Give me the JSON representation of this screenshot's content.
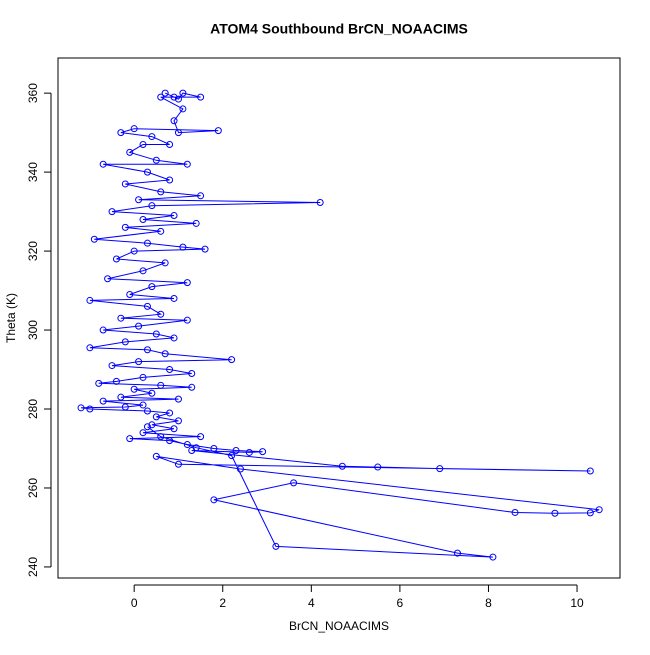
{
  "chart_data": {
    "type": "line",
    "title": "ATOM4 Southbound BrCN_NOAACIMS",
    "x_label": "BrCN_NOAACIMS",
    "y_label": "Theta (K)",
    "color": "#0000ff",
    "markers": true,
    "xlim": [
      -1.72,
      10.97
    ],
    "ylim": [
      237.2,
      368.9
    ],
    "xticks": [
      0,
      2,
      4,
      6,
      8,
      10
    ],
    "yticks": [
      240,
      260,
      280,
      300,
      320,
      340,
      360
    ],
    "series": [
      {
        "name": "BrCN_NOAACIMS",
        "color": "#0000ff",
        "x": [
          0.7,
          0.9,
          1.0,
          1.1,
          1.5,
          0.6,
          1.1,
          0.9,
          1.0,
          1.9,
          0.0,
          -0.3,
          0.4,
          0.8,
          0.2,
          -0.1,
          0.5,
          1.2,
          -0.7,
          0.3,
          0.8,
          -0.2,
          0.6,
          1.5,
          0.1,
          4.2,
          0.4,
          -0.5,
          0.9,
          0.2,
          1.4,
          -0.2,
          0.6,
          -0.9,
          0.3,
          1.1,
          1.6,
          0.0,
          -0.4,
          0.7,
          0.2,
          -0.6,
          1.2,
          0.4,
          -0.1,
          0.9,
          -1.0,
          0.3,
          0.6,
          -0.3,
          1.2,
          0.1,
          -0.7,
          0.5,
          0.9,
          -0.2,
          -1.0,
          0.3,
          0.7,
          2.2,
          0.1,
          -0.5,
          0.8,
          1.3,
          0.2,
          -0.4,
          -0.8,
          0.6,
          1.3,
          0.0,
          0.4,
          -0.3,
          1.0,
          -0.7,
          0.2,
          -0.2,
          -1.2,
          -1.0,
          0.3,
          0.8,
          0.5,
          1.0,
          0.4,
          0.9,
          0.2,
          1.5,
          -0.1,
          0.8,
          1.2,
          1.8,
          2.3,
          2.9,
          2.6,
          1.3,
          4.7,
          5.5,
          6.9,
          10.3,
          1.0,
          0.5,
          2.4,
          10.5,
          10.3,
          9.5,
          8.6,
          3.6,
          1.8,
          7.3,
          8.1,
          3.2,
          2.2,
          1.4,
          0.6,
          0.3
        ],
        "values": [
          360,
          359,
          358.5,
          360,
          359,
          359,
          356,
          353,
          350,
          350.5,
          351,
          350,
          349,
          347,
          347,
          345,
          343,
          342,
          342,
          340,
          338,
          337,
          335,
          334,
          333,
          332.3,
          331.5,
          330,
          329,
          328,
          327,
          326,
          325,
          323,
          322,
          321,
          320.5,
          320,
          318,
          317,
          315,
          313,
          312,
          311,
          309,
          308,
          307.5,
          306,
          304,
          303,
          302.5,
          301,
          300,
          299,
          298,
          297,
          295.5,
          295,
          294,
          292.5,
          292,
          291,
          290,
          289,
          288,
          287,
          286.5,
          286,
          285.5,
          285,
          284,
          283,
          282.5,
          282,
          281,
          280.5,
          280.3,
          280,
          279.5,
          279,
          278,
          277,
          276,
          275,
          274,
          273,
          272.5,
          272,
          271,
          270,
          269.5,
          269.2,
          269,
          269.5,
          265.5,
          265.3,
          264.9,
          264.3,
          266,
          268,
          264.8,
          254.5,
          253.7,
          253.6,
          253.8,
          261.3,
          257,
          243.5,
          242.5,
          245.2,
          268.2,
          270.2,
          273,
          275.5
        ]
      }
    ]
  }
}
